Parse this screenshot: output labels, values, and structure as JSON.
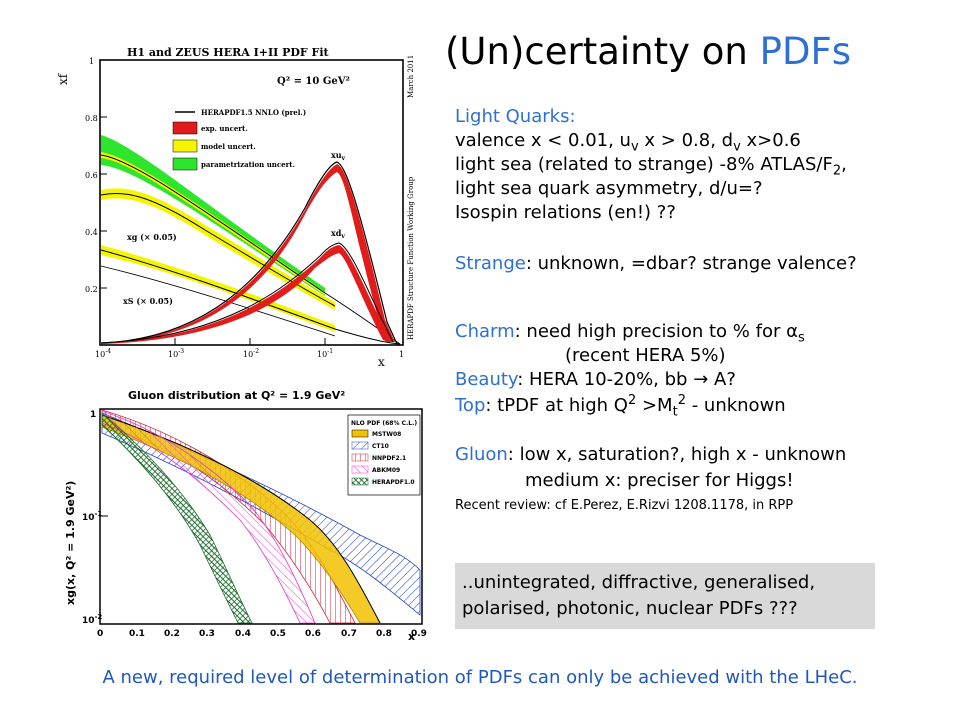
{
  "title": {
    "prefix": "(Un)certainty on ",
    "highlight": "PDFs"
  },
  "plot1": {
    "title": "H1 and ZEUS HERA I+II PDF Fit",
    "q2_label": "Q² = 10 GeV²",
    "y_axis_label": "xf",
    "x_axis_label": "x",
    "side_text": "HERAPDF Structure Function Working Group",
    "date_text": "March 2011",
    "legend": [
      "HERAPDF1.5 NNLO (prel.)",
      "exp. uncert.",
      "model uncert.",
      "parametrization uncert."
    ],
    "curve_labels": {
      "xuv": "xu",
      "xuv_sub": "v",
      "xdv": "xd",
      "xdv_sub": "v",
      "xg": "xg (× 0.05)",
      "xs": "xS (× 0.05)"
    },
    "y_ticks": [
      "1",
      "0.8",
      "0.6",
      "0.4",
      "0.2"
    ],
    "x_ticks": [
      {
        "base": "10",
        "exp": "-4"
      },
      {
        "base": "10",
        "exp": "-3"
      },
      {
        "base": "10",
        "exp": "-2"
      },
      {
        "base": "10",
        "exp": "-1"
      },
      {
        "base": "1",
        "exp": ""
      }
    ]
  },
  "plot2": {
    "title": "Gluon distribution at Q² = 1.9 GeV²",
    "y_axis_label": "xg(x, Q² = 1.9 GeV²)",
    "x_axis_label": "x",
    "legend_title": "NLO PDF (68% C.L.)",
    "legend": [
      "MSTW08",
      "CT10",
      "NNPDF2.1",
      "ABKM09",
      "HERAPDF1.0"
    ],
    "colors": {
      "MSTW08": "#f2c200",
      "CT10": "#1f3fd0",
      "NNPDF2.1": "#d4203a",
      "ABKM09": "#e83ccf",
      "HERAPDF1.0": "#1a6b2a"
    },
    "y_ticks": [
      {
        "base": "1",
        "exp": ""
      },
      {
        "base": "10",
        "exp": "-1"
      },
      {
        "base": "10",
        "exp": "-2"
      }
    ],
    "x_ticks": [
      "0",
      "0.1",
      "0.2",
      "0.3",
      "0.4",
      "0.5",
      "0.6",
      "0.7",
      "0.8",
      "0.9"
    ]
  },
  "text": {
    "lq_head": "Light Quarks:",
    "lq1_a": "valence x < 0.01, u",
    "lq1_sub1": "v",
    "lq1_b": " x > 0.8, d",
    "lq1_sub2": "v",
    "lq1_c": " x>0.6",
    "lq2_a": "light sea (related to strange) -8% ATLAS/F",
    "lq2_sub": "2",
    "lq2_b": ",",
    "lq3": "light sea quark asymmetry,  d/u=?",
    "lq4": "Isospin relations (en!)  ??",
    "strange_head": "Strange",
    "strange_rest": ": unknown, =dbar? strange valence?",
    "charm_head": "Charm",
    "charm_rest": ": need high precision to % for α",
    "charm_sub": "s",
    "charm_line2": "(recent HERA 5%)",
    "beauty_head": "Beauty",
    "beauty_rest": ": HERA 10-20%, bb  → A?",
    "top_head": "Top",
    "top_a": ": tPDF at high Q",
    "top_sup1": "2",
    "top_b": " >M",
    "top_sub": "t",
    "top_sup2": "2",
    "top_c": " - unknown",
    "gluon_head": "Gluon",
    "gluon_rest": ": low x, saturation?, high x - unknown",
    "gluon_line2": "medium x: preciser for Higgs!",
    "review": "Recent review: cf E.Perez, E.Rizvi 1208.1178, in RPP",
    "note_line1": "..unintegrated, diffractive, generalised,",
    "note_line2": "polarised, photonic, nuclear PDFs ???"
  },
  "footer": "A new, required level of determination of PDFs can only be achieved with the LHeC."
}
